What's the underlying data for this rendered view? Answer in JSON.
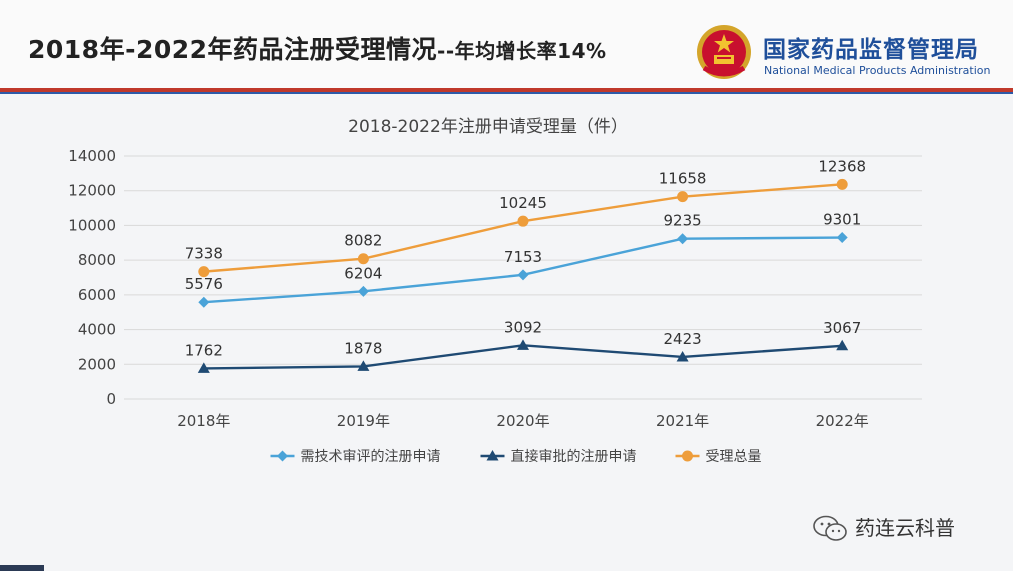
{
  "header": {
    "title_main": "2018年-2022年药品注册受理情况",
    "title_sub": "--年均增长率14%",
    "agency_cn": "国家药品监督管理局",
    "agency_en": "National Medical Products Administration",
    "emblem_icon": "national-emblem-icon"
  },
  "watermark": {
    "text": "药连云科普",
    "icon": "wechat-icon"
  },
  "chart_data": {
    "type": "line",
    "title": "2018-2022年注册申请受理量（件）",
    "categories": [
      "2018年",
      "2019年",
      "2020年",
      "2021年",
      "2022年"
    ],
    "ylim": [
      0,
      14000
    ],
    "yticks": [
      0,
      2000,
      4000,
      6000,
      8000,
      10000,
      12000,
      14000
    ],
    "grid": true,
    "legend_position": "bottom",
    "series": [
      {
        "name": "需技术审评的注册申请",
        "values": [
          5576,
          6204,
          7153,
          9235,
          9301
        ],
        "color": "#4aa3d8",
        "marker": "diamond"
      },
      {
        "name": "直接审批的注册申请",
        "values": [
          1762,
          1878,
          3092,
          2423,
          3067
        ],
        "color": "#1f4a73",
        "marker": "triangle"
      },
      {
        "name": "受理总量",
        "values": [
          7338,
          8082,
          10245,
          11658,
          12368
        ],
        "color": "#ee9d3b",
        "marker": "circle"
      }
    ]
  }
}
